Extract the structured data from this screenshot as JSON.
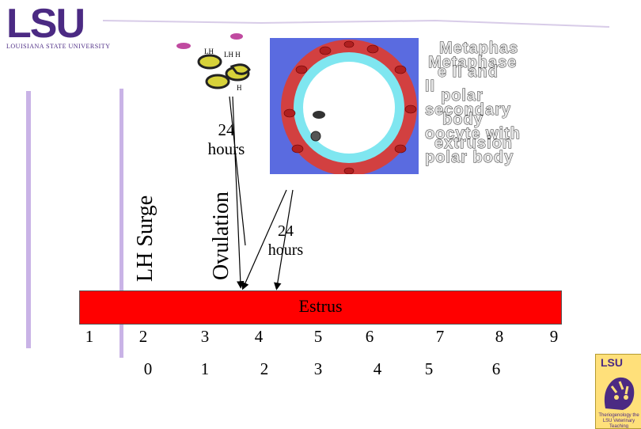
{
  "logo": {
    "text": "LSU",
    "subtitle": "LOUISIANA STATE UNIVERSITY"
  },
  "labels": {
    "lh_surge": "LH Surge",
    "ovulation": "Ovulation",
    "hours_upper": "24 hours",
    "hours_lower": "24 hours",
    "estrus": "Estrus"
  },
  "lh_molecules": {
    "label_left": "LH",
    "label_right": "LH H",
    "label_bottom": "H"
  },
  "metaphase_text": {
    "layer1": [
      "Metaphas",
      "e II and",
      "polar",
      "body",
      "extrusion"
    ],
    "layer2": [
      "Metaphase",
      "II",
      "secondary",
      "oocyte with",
      "polar body"
    ]
  },
  "timeline": {
    "top_row": [
      "1",
      "2",
      "3",
      "4",
      "5",
      "6",
      "7",
      "8",
      "9"
    ],
    "bottom_row": [
      "0",
      "1",
      "2",
      "3",
      "4",
      "5",
      "6"
    ]
  },
  "badge": {
    "title": "LSU",
    "caption": "Theriogenology the LSU Veterinary Teaching"
  },
  "colors": {
    "purple": "#4b2a83",
    "estrus_red": "#ff0000",
    "egg_bg": "#5a6be0",
    "zona": "#7fe6f0"
  }
}
